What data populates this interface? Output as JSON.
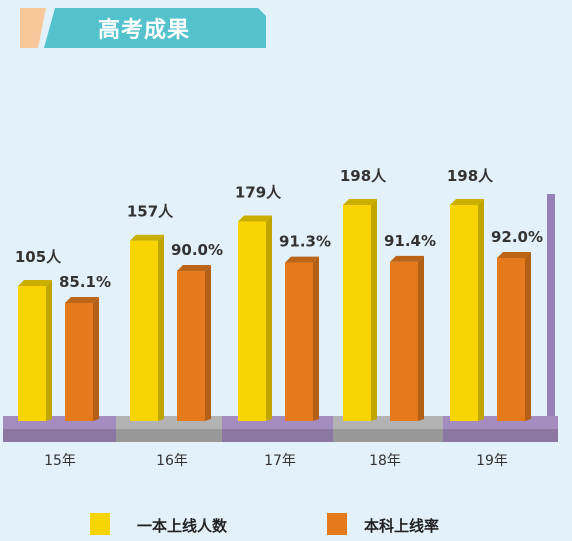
{
  "header": {
    "title": "高考成果"
  },
  "chart_data": {
    "type": "bar",
    "title": "高考成果",
    "categories": [
      "15年",
      "16年",
      "17年",
      "18年",
      "19年"
    ],
    "series": [
      {
        "name": "一本上线人数",
        "values": [
          105,
          157,
          179,
          198,
          198
        ],
        "labels": [
          "105人",
          "157人",
          "179人",
          "198人",
          "198人"
        ],
        "color": "#f8d500"
      },
      {
        "name": "本科上线率",
        "values": [
          85.1,
          90.0,
          91.3,
          91.4,
          92.0
        ],
        "labels": [
          "85.1%",
          "90.0%",
          "91.3%",
          "91.4%",
          "92.0%"
        ],
        "color": "#e57a1c"
      }
    ],
    "legend": "bottom",
    "grid": false
  },
  "colors": {
    "banner": "#53c2cc",
    "banner_accent": "#f8c89a",
    "background": "#e3f2fa",
    "stage_purple": "#a48cbf",
    "stage_gray": "#b3b3b3"
  }
}
